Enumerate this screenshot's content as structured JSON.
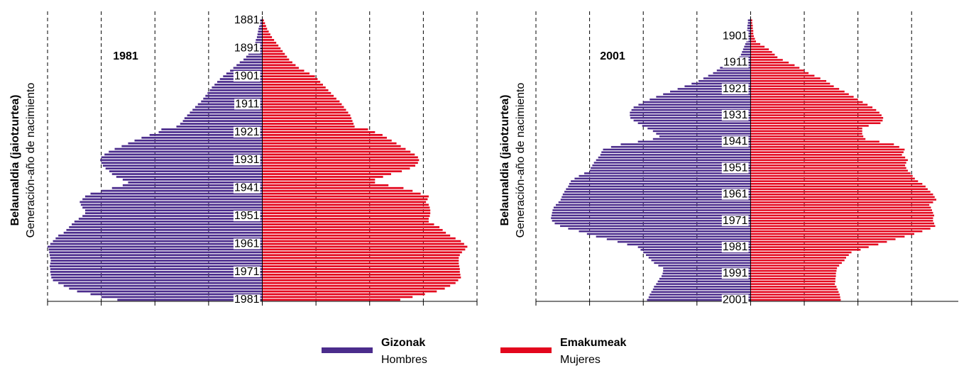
{
  "chart_data": [
    {
      "type": "pyramid",
      "title": "1981",
      "y_label": "Belaunaldia (jaiotzurtea)",
      "y_sublabel": "Generación-año de nacimiento",
      "categories": [
        "1881",
        null,
        null,
        null,
        null,
        null,
        null,
        null,
        null,
        null,
        "1891",
        null,
        null,
        null,
        null,
        null,
        null,
        null,
        null,
        null,
        "1901",
        null,
        null,
        null,
        null,
        null,
        null,
        null,
        null,
        null,
        "1911",
        null,
        null,
        null,
        null,
        null,
        null,
        null,
        null,
        null,
        "1921",
        null,
        null,
        null,
        null,
        null,
        null,
        null,
        null,
        null,
        "1931",
        null,
        null,
        null,
        null,
        null,
        null,
        null,
        null,
        null,
        "1941",
        null,
        null,
        null,
        null,
        null,
        null,
        null,
        null,
        null,
        "1951",
        null,
        null,
        null,
        null,
        null,
        null,
        null,
        null,
        null,
        "1961",
        null,
        null,
        null,
        null,
        null,
        null,
        null,
        null,
        null,
        "1971",
        null,
        null,
        null,
        null,
        null,
        null,
        null,
        null,
        null,
        "1981"
      ],
      "xlim": [
        -4,
        4
      ],
      "xticks": [
        -4,
        -3,
        -2,
        -1,
        0,
        1,
        2,
        3,
        4
      ],
      "grid": true,
      "series": [
        {
          "name": "Gizonak",
          "subname": "Hombres",
          "color": "#4b2c8c",
          "values": [
            0.04,
            0.05,
            0.06,
            0.07,
            0.08,
            0.09,
            0.1,
            0.12,
            0.13,
            0.15,
            0.18,
            0.22,
            0.26,
            0.3,
            0.35,
            0.42,
            0.48,
            0.54,
            0.6,
            0.67,
            0.73,
            0.79,
            0.84,
            0.89,
            0.94,
            0.98,
            1.02,
            1.06,
            1.1,
            1.14,
            1.2,
            1.25,
            1.3,
            1.35,
            1.4,
            1.45,
            1.48,
            1.53,
            1.6,
            1.88,
            1.93,
            2.1,
            2.25,
            2.38,
            2.5,
            2.62,
            2.75,
            2.86,
            2.94,
            3.0,
            3.02,
            3.0,
            2.97,
            2.92,
            2.85,
            2.8,
            2.72,
            2.6,
            2.5,
            2.6,
            2.8,
            3.0,
            3.2,
            3.3,
            3.35,
            3.4,
            3.38,
            3.35,
            3.3,
            3.3,
            3.35,
            3.42,
            3.5,
            3.55,
            3.6,
            3.65,
            3.7,
            3.8,
            3.85,
            3.9,
            3.95,
            4.0,
            3.98,
            3.97,
            3.96,
            3.95,
            3.94,
            3.95,
            3.96,
            3.95,
            3.95,
            3.94,
            3.93,
            3.9,
            3.8,
            3.7,
            3.6,
            3.45,
            3.2,
            3.0,
            2.7
          ]
        },
        {
          "name": "Emakumeak",
          "subname": "Mujeres",
          "color": "#e3061d",
          "values": [
            0.03,
            0.05,
            0.07,
            0.09,
            0.12,
            0.15,
            0.18,
            0.22,
            0.26,
            0.3,
            0.34,
            0.38,
            0.42,
            0.46,
            0.5,
            0.56,
            0.62,
            0.68,
            0.78,
            0.88,
            0.98,
            1.03,
            1.08,
            1.13,
            1.18,
            1.23,
            1.28,
            1.33,
            1.38,
            1.44,
            1.48,
            1.52,
            1.56,
            1.6,
            1.64,
            1.66,
            1.68,
            1.7,
            1.72,
            1.97,
            2.1,
            2.24,
            2.32,
            2.41,
            2.5,
            2.58,
            2.67,
            2.76,
            2.84,
            2.9,
            2.92,
            2.9,
            2.85,
            2.75,
            2.6,
            2.4,
            2.25,
            2.1,
            2.1,
            2.35,
            2.63,
            2.8,
            2.95,
            3.1,
            3.08,
            3.05,
            3.1,
            3.12,
            3.13,
            3.13,
            3.12,
            3.1,
            3.1,
            3.2,
            3.3,
            3.36,
            3.42,
            3.5,
            3.6,
            3.7,
            3.76,
            3.82,
            3.78,
            3.72,
            3.68,
            3.66,
            3.66,
            3.66,
            3.67,
            3.68,
            3.68,
            3.69,
            3.7,
            3.65,
            3.6,
            3.5,
            3.4,
            3.25,
            3.03,
            2.8,
            2.57
          ]
        }
      ]
    },
    {
      "type": "pyramid",
      "title": "2001",
      "y_label": "Belaunaldia (jaiotzurtea)",
      "y_sublabel": "Generación-año de nacimiento",
      "categories": [
        null,
        null,
        null,
        null,
        null,
        null,
        "1901",
        null,
        null,
        null,
        null,
        null,
        null,
        null,
        null,
        null,
        "1911",
        null,
        null,
        null,
        null,
        null,
        null,
        null,
        null,
        null,
        "1921",
        null,
        null,
        null,
        null,
        null,
        null,
        null,
        null,
        null,
        "1931",
        null,
        null,
        null,
        null,
        null,
        null,
        null,
        null,
        null,
        "1941",
        null,
        null,
        null,
        null,
        null,
        null,
        null,
        null,
        null,
        "1951",
        null,
        null,
        null,
        null,
        null,
        null,
        null,
        null,
        null,
        "1961",
        null,
        null,
        null,
        null,
        null,
        null,
        null,
        null,
        null,
        "1971",
        null,
        null,
        null,
        null,
        null,
        null,
        null,
        null,
        null,
        "1981",
        null,
        null,
        null,
        null,
        null,
        null,
        null,
        null,
        null,
        "1991",
        null,
        null,
        null,
        null,
        null,
        null,
        null,
        null,
        null,
        "2001"
      ],
      "xlim": [
        -4,
        3.87
      ],
      "xticks": [
        -4,
        -3,
        -2,
        -1,
        0,
        1,
        2,
        3
      ],
      "grid": true,
      "series": [
        {
          "color": "#4b2c8c",
          "values": [
            0.05,
            0.05,
            0.06,
            0.06,
            0.07,
            0.07,
            0.07,
            0.08,
            0.08,
            0.1,
            0.12,
            0.14,
            0.16,
            0.18,
            0.21,
            0.24,
            0.37,
            0.5,
            0.57,
            0.63,
            0.7,
            0.79,
            0.88,
            0.97,
            1.1,
            1.23,
            1.36,
            1.5,
            1.63,
            1.76,
            1.88,
            2.0,
            2.09,
            2.18,
            2.22,
            2.25,
            2.25,
            2.24,
            2.18,
            2.1,
            2.02,
            1.92,
            1.82,
            1.76,
            1.7,
            1.82,
            2.1,
            2.42,
            2.6,
            2.75,
            2.78,
            2.8,
            2.84,
            2.88,
            2.92,
            2.95,
            2.98,
            3.0,
            3.1,
            3.2,
            3.28,
            3.35,
            3.38,
            3.4,
            3.44,
            3.47,
            3.5,
            3.52,
            3.54,
            3.58,
            3.63,
            3.67,
            3.69,
            3.7,
            3.71,
            3.72,
            3.7,
            3.65,
            3.55,
            3.4,
            3.2,
            3.05,
            2.88,
            2.68,
            2.48,
            2.3,
            2.1,
            2.05,
            2.0,
            1.95,
            1.9,
            1.85,
            1.8,
            1.72,
            1.63,
            1.63,
            1.64,
            1.66,
            1.7,
            1.73,
            1.76,
            1.8,
            1.82,
            1.85,
            1.88,
            1.9,
            1.93
          ]
        },
        {
          "color": "#e3061d",
          "values": [
            0.03,
            0.03,
            0.04,
            0.04,
            0.05,
            0.05,
            0.06,
            0.08,
            0.1,
            0.18,
            0.26,
            0.34,
            0.4,
            0.45,
            0.5,
            0.6,
            0.71,
            0.82,
            0.91,
            1.0,
            1.08,
            1.19,
            1.3,
            1.41,
            1.48,
            1.55,
            1.65,
            1.75,
            1.83,
            1.92,
            2.0,
            2.09,
            2.18,
            2.27,
            2.34,
            2.4,
            2.44,
            2.47,
            2.46,
            2.42,
            2.2,
            2.08,
            2.08,
            2.08,
            2.1,
            2.14,
            2.4,
            2.67,
            2.77,
            2.87,
            2.85,
            2.82,
            2.88,
            2.93,
            2.9,
            2.88,
            2.9,
            2.93,
            2.98,
            3.02,
            3.06,
            3.12,
            3.2,
            3.26,
            3.3,
            3.35,
            3.4,
            3.43,
            3.46,
            3.4,
            3.33,
            3.36,
            3.38,
            3.4,
            3.42,
            3.4,
            3.4,
            3.42,
            3.44,
            3.35,
            3.2,
            3.05,
            2.87,
            2.7,
            2.54,
            2.38,
            2.2,
            2.05,
            1.88,
            1.83,
            1.78,
            1.75,
            1.7,
            1.65,
            1.61,
            1.6,
            1.59,
            1.59,
            1.58,
            1.58,
            1.57,
            1.6,
            1.62,
            1.64,
            1.66,
            1.67,
            1.68
          ]
        }
      ]
    }
  ]
}
